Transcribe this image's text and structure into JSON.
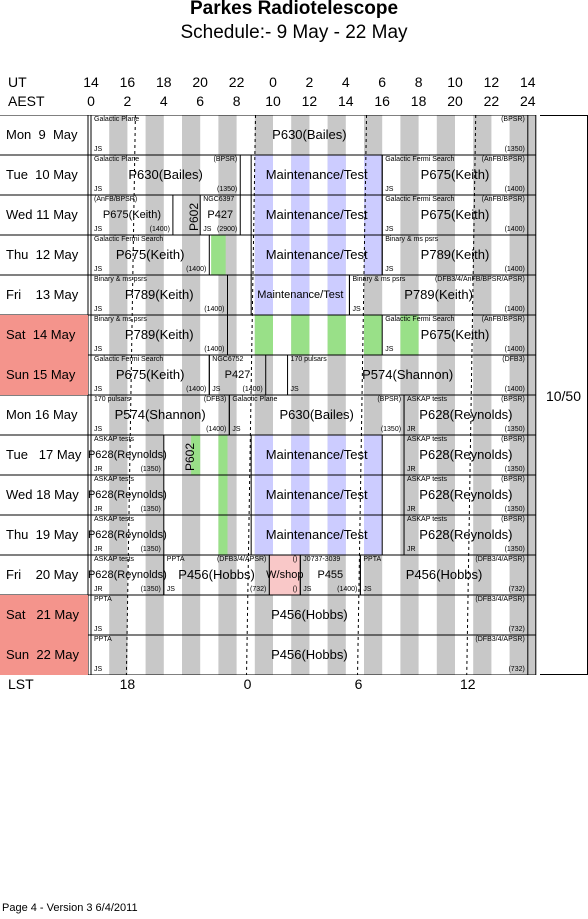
{
  "title": "Parkes Radiotelescope",
  "subtitle": "Schedule:- 9  May - 22 May",
  "axes": {
    "ut_label": "UT",
    "aest_label": "AEST",
    "lst_label": "LST",
    "ut_ticks": [
      "14",
      "16",
      "18",
      "20",
      "22",
      "0",
      "2",
      "4",
      "6",
      "8",
      "10",
      "12",
      "14"
    ],
    "aest_ticks": [
      "0",
      "2",
      "4",
      "6",
      "8",
      "10",
      "12",
      "14",
      "16",
      "18",
      "20",
      "22",
      "24"
    ],
    "lst_ticks": [
      "18",
      "0",
      "6",
      "12"
    ]
  },
  "version_box": "10/50",
  "footer": "Page 4 - Version 3  6/4/2011",
  "colors": {
    "weekend": "#f4948c",
    "grey_stripe": "#c8c8c8",
    "maintenance": "#ccccff",
    "green": "#99e088",
    "wshop": "#f9c8c8"
  },
  "days": [
    {
      "label": "Mon  9  May",
      "weekend": false
    },
    {
      "label": "Tue  10 May",
      "weekend": false
    },
    {
      "label": "Wed 11 May",
      "weekend": false
    },
    {
      "label": "Thu  12 May",
      "weekend": false
    },
    {
      "label": "Fri    13 May",
      "weekend": false
    },
    {
      "label": "Sat  14 May",
      "weekend": true
    },
    {
      "label": "Sun 15 May",
      "weekend": true
    },
    {
      "label": "Mon 16 May",
      "weekend": false
    },
    {
      "label": "Tue   17 May",
      "weekend": false
    },
    {
      "label": "Wed 18 May",
      "weekend": false
    },
    {
      "label": "Thu  19 May",
      "weekend": false
    },
    {
      "label": "Fri    20 May",
      "weekend": false
    },
    {
      "label": "Sat   21 May",
      "weekend": true
    },
    {
      "label": "Sun  22 May",
      "weekend": true
    }
  ],
  "blocks": [
    {
      "row": 0,
      "x1": 0,
      "x2": 24,
      "main": "P630(Bailes)",
      "tl": "Galactic Plane",
      "tr": "(BPSR)",
      "bl": "JS",
      "br": "(1350)"
    },
    {
      "row": 1,
      "x1": 0,
      "x2": 8.2,
      "main": "P630(Bailes)",
      "tl": "Galactic Plane",
      "tr": "(BPSR)",
      "bl": "JS",
      "br": "(1350)"
    },
    {
      "row": 1,
      "x1": 16,
      "x2": 24,
      "main": "P675(Keith)",
      "tl": "Galactic Fermi Search",
      "tr": "(AnFB/BPSR)",
      "bl": "JS",
      "br": "(1400)"
    },
    {
      "row": 2,
      "x1": 0,
      "x2": 4.5,
      "main": "P675(Keith)",
      "tl": "(AnFB/BPSR)",
      "bl": "JS",
      "br": "(1400)"
    },
    {
      "row": 2,
      "x1": 6,
      "x2": 8.2,
      "main": "P427",
      "tl": "NGC6397",
      "bl": "JS",
      "br": "(2900)"
    },
    {
      "row": 2,
      "x1": 16,
      "x2": 24,
      "main": "P675(Keith)",
      "tl": "Galactic Fermi Search",
      "tr": "(AnFB/BPSR)",
      "bl": "JS",
      "br": "(1400)"
    },
    {
      "row": 3,
      "x1": 0,
      "x2": 6.5,
      "main": "P675(Keith)",
      "tl": "Galactic Fermi Search",
      "bl": "JS",
      "br": "(1400)"
    },
    {
      "row": 3,
      "x1": 16,
      "x2": 24,
      "main": "P789(Keith)",
      "tl": "Binary & ms psrs",
      "bl": "JS",
      "br": "(1400)"
    },
    {
      "row": 4,
      "x1": 0,
      "x2": 7.5,
      "main": "P789(Keith)",
      "tl": "Binary & ms psrs",
      "bl": "JS",
      "br": "(1400)"
    },
    {
      "row": 4,
      "x1": 14.2,
      "x2": 24,
      "main": "P789(Keith)",
      "tl": "Binary & ms psrs",
      "tr": "(DFB3/4/AnFB/BPSR/APSR)",
      "bl": "JS",
      "br": "(1400)"
    },
    {
      "row": 5,
      "x1": 0,
      "x2": 7.5,
      "main": "P789(Keith)",
      "tl": "Binary & ms psrs",
      "bl": "JS",
      "br": "(1400)"
    },
    {
      "row": 5,
      "x1": 16,
      "x2": 24,
      "main": "P675(Keith)",
      "tl": "Galactic Fermi Search",
      "tr": "(AnFB/BPSR)",
      "bl": "JS",
      "br": "(1400)"
    },
    {
      "row": 6,
      "x1": 0,
      "x2": 6.5,
      "main": "P675(Keith)",
      "tl": "Galactic Fermi Search",
      "bl": "JS",
      "br": "(1400)"
    },
    {
      "row": 6,
      "x1": 6.5,
      "x2": 9.6,
      "main": "P427",
      "tl": "NGC6752",
      "bl": "JS",
      "br": "(1400)"
    },
    {
      "row": 6,
      "x1": 10.8,
      "x2": 24,
      "main": "P574(Shannon)",
      "tl": "170 pulsars",
      "tr": "(DFB3)",
      "bl": "JS",
      "br": "(1400)"
    },
    {
      "row": 7,
      "x1": 0,
      "x2": 7.6,
      "main": "P574(Shannon)",
      "tl": "170 pulsars",
      "tr": "(DFB3)",
      "bl": "JS",
      "br": "(1400)"
    },
    {
      "row": 7,
      "x1": 7.6,
      "x2": 17.2,
      "main": "P630(Bailes)",
      "tl": "Galactic Plane",
      "tr": "(BPSR)",
      "bl": "JS",
      "br": "(1350)"
    },
    {
      "row": 7,
      "x1": 17.2,
      "x2": 24,
      "main": "P628(Reynolds)",
      "tl": "ASKAP tests",
      "tr": "(BPSR)",
      "bl": "JR",
      "br": "(1350)"
    },
    {
      "row": 8,
      "x1": 0,
      "x2": 4,
      "main": "P628(Reynolds)",
      "tl": "ASKAP tests",
      "bl": "JR",
      "br": "(1350)"
    },
    {
      "row": 8,
      "x1": 17.2,
      "x2": 24,
      "main": "P628(Reynolds)",
      "tl": "ASKAP tests",
      "tr": "(BPSR)",
      "bl": "JR",
      "br": "(1350)"
    },
    {
      "row": 9,
      "x1": 0,
      "x2": 4,
      "main": "P628(Reynolds)",
      "tl": "ASKAP tests",
      "bl": "JR",
      "br": "(1350)"
    },
    {
      "row": 9,
      "x1": 17.2,
      "x2": 24,
      "main": "P628(Reynolds)",
      "tl": "ASKAP tests",
      "tr": "(BPSR)",
      "bl": "JR",
      "br": "(1350)"
    },
    {
      "row": 10,
      "x1": 0,
      "x2": 4,
      "main": "P628(Reynolds)",
      "tl": "ASKAP tests",
      "bl": "JR",
      "br": "(1350)"
    },
    {
      "row": 10,
      "x1": 17.2,
      "x2": 24,
      "main": "P628(Reynolds)",
      "tl": "ASKAP tests",
      "tr": "(BPSR)",
      "bl": "JR",
      "br": "(1350)"
    },
    {
      "row": 11,
      "x1": 0,
      "x2": 4,
      "main": "P628(Reynolds)",
      "tl": "ASKAP tests",
      "bl": "JR",
      "br": "(1350)"
    },
    {
      "row": 11,
      "x1": 4,
      "x2": 9.8,
      "main": "P456(Hobbs)",
      "tl": "PPTA",
      "tr": "(DFB3/4/APSR)",
      "bl": "JS",
      "br": "(732)"
    },
    {
      "row": 11,
      "x1": 9.8,
      "x2": 11.5,
      "main": "W/shop",
      "tr": "()",
      "br": "()",
      "fill": "wshop"
    },
    {
      "row": 11,
      "x1": 11.5,
      "x2": 14.8,
      "main": "P455",
      "tl": "J0737-3039",
      "bl": "JS",
      "br": "(1400)"
    },
    {
      "row": 11,
      "x1": 14.8,
      "x2": 24,
      "main": "P456(Hobbs)",
      "tl": "PPTA",
      "tr": "(DFB3/4/APSR)",
      "bl": "JS",
      "br": "(732)"
    },
    {
      "row": 12,
      "x1": 0,
      "x2": 24,
      "main": "P456(Hobbs)",
      "tl": "PPTA",
      "tr": "(DFB3/4/APSR)",
      "bl": "JS",
      "br": "(732)"
    },
    {
      "row": 13,
      "x1": 0,
      "x2": 24,
      "main": "P456(Hobbs)",
      "tl": "PPTA",
      "tr": "(DFB3/4/APSR)",
      "bl": "JS",
      "br": "(732)"
    }
  ],
  "maintenance": [
    {
      "row": 1,
      "x1": 8.8,
      "x2": 16,
      "label": "Maintenance/Test"
    },
    {
      "row": 2,
      "x1": 8.8,
      "x2": 16,
      "label": "Maintenance/Test"
    },
    {
      "row": 3,
      "x1": 8.8,
      "x2": 16,
      "label": "Maintenance/Test"
    },
    {
      "row": 4,
      "x1": 8.8,
      "x2": 14.2,
      "label": "Maintenance/Test"
    },
    {
      "row": 8,
      "x1": 8.8,
      "x2": 16,
      "label": "Maintenance/Test"
    },
    {
      "row": 9,
      "x1": 8.8,
      "x2": 16,
      "label": "Maintenance/Test"
    },
    {
      "row": 10,
      "x1": 8.8,
      "x2": 16,
      "label": "Maintenance/Test"
    }
  ],
  "vertical_labels": [
    {
      "row": 2,
      "x": 5.6,
      "text": "P602"
    },
    {
      "row": 8,
      "x": 5.4,
      "text": "P602"
    }
  ],
  "lst_dashes": [
    {
      "row": 0,
      "x": [
        4.3,
        8.3,
        14.3,
        20.3
      ]
    }
  ]
}
